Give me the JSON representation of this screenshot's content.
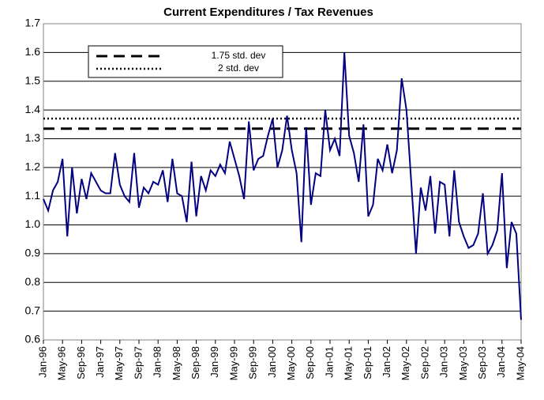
{
  "chart_data": {
    "type": "line",
    "title": "Current Expenditures / Tax Revenues",
    "categories": [
      "Jan-96",
      null,
      null,
      null,
      "May-96",
      null,
      null,
      null,
      "Sep-96",
      null,
      null,
      null,
      "Jan-97",
      null,
      null,
      null,
      "May-97",
      null,
      null,
      null,
      "Sep-97",
      null,
      null,
      null,
      "Jan-98",
      null,
      null,
      null,
      "May-98",
      null,
      null,
      null,
      "Sep-98",
      null,
      null,
      null,
      "Jan-99",
      null,
      null,
      null,
      "May-99",
      null,
      null,
      null,
      "Sep-99",
      null,
      null,
      null,
      "Jan-00",
      null,
      null,
      null,
      "May-00",
      null,
      null,
      null,
      "Sep-00",
      null,
      null,
      null,
      "Jan-01",
      null,
      null,
      null,
      "May-01",
      null,
      null,
      null,
      "Sep-01",
      null,
      null,
      null,
      "Jan-02",
      null,
      null,
      null,
      "May-02",
      null,
      null,
      null,
      "Sep-02",
      null,
      null,
      null,
      "Jan-03",
      null,
      null,
      null,
      "May-03",
      null,
      null,
      null,
      "Sep-03",
      null,
      null,
      null,
      "Jan-04",
      null,
      null,
      null,
      "May-04"
    ],
    "series": [
      {
        "color": "#000080",
        "values": [
          1.09,
          1.05,
          1.12,
          1.15,
          1.23,
          0.96,
          1.2,
          1.04,
          1.16,
          1.09,
          1.18,
          1.15,
          1.12,
          1.11,
          1.11,
          1.25,
          1.14,
          1.1,
          1.08,
          1.25,
          1.06,
          1.13,
          1.11,
          1.15,
          1.14,
          1.19,
          1.08,
          1.23,
          1.11,
          1.1,
          1.01,
          1.22,
          1.03,
          1.17,
          1.12,
          1.19,
          1.17,
          1.21,
          1.18,
          1.29,
          1.23,
          1.17,
          1.09,
          1.36,
          1.19,
          1.23,
          1.24,
          1.31,
          1.37,
          1.2,
          1.26,
          1.38,
          1.26,
          1.18,
          0.94,
          1.34,
          1.07,
          1.18,
          1.17,
          1.4,
          1.26,
          1.3,
          1.24,
          1.6,
          1.31,
          1.25,
          1.15,
          1.35,
          1.03,
          1.07,
          1.23,
          1.19,
          1.28,
          1.18,
          1.26,
          1.51,
          1.4,
          1.15,
          0.9,
          1.13,
          1.05,
          1.17,
          0.97,
          1.15,
          1.14,
          0.96,
          1.19,
          1.01,
          0.96,
          0.92,
          0.93,
          0.97,
          1.11,
          0.9,
          0.93,
          0.98,
          1.18,
          0.85,
          1.01,
          0.97,
          0.67
        ]
      }
    ],
    "reference_lines": [
      {
        "name": "1.75 std. dev",
        "value": 1.335,
        "style": "dashed",
        "color": "#000000"
      },
      {
        "name": "2 std. dev",
        "value": 1.37,
        "style": "dotted",
        "color": "#000000"
      }
    ],
    "ylim": [
      0.6,
      1.7
    ],
    "yticks": [
      0.6,
      0.7,
      0.8,
      0.9,
      {
        "value": 1,
        "label": "1.0"
      },
      1.1,
      1.2,
      1.3,
      1.4,
      1.5,
      1.6,
      1.7
    ],
    "grid": true
  }
}
